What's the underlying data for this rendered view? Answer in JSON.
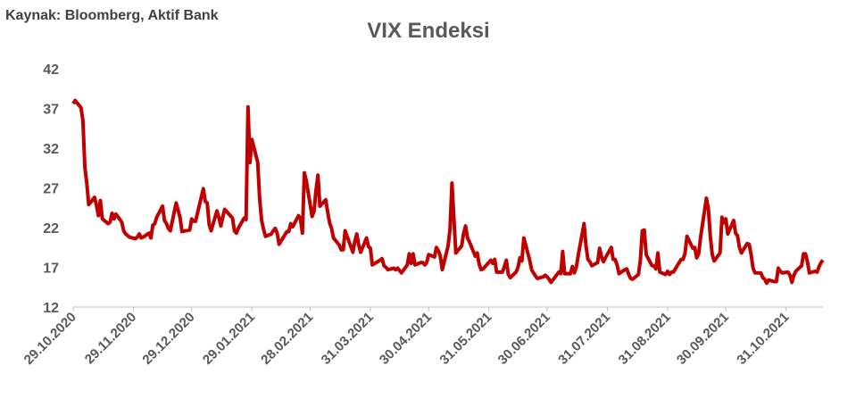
{
  "chart_data": {
    "type": "line",
    "title": "VIX Endeksi",
    "source": "Kaynak: Bloomberg, Aktif Bank",
    "x": [
      "29.10.2020",
      "30.10.2020",
      "02.11.2020",
      "03.11.2020",
      "04.11.2020",
      "05.11.2020",
      "06.11.2020",
      "09.11.2020",
      "10.11.2020",
      "11.11.2020",
      "12.11.2020",
      "13.11.2020",
      "16.11.2020",
      "17.11.2020",
      "18.11.2020",
      "19.11.2020",
      "20.11.2020",
      "23.11.2020",
      "24.11.2020",
      "25.11.2020",
      "27.11.2020",
      "30.11.2020",
      "01.12.2020",
      "02.12.2020",
      "03.12.2020",
      "04.12.2020",
      "07.12.2020",
      "08.12.2020",
      "09.12.2020",
      "10.12.2020",
      "11.12.2020",
      "14.12.2020",
      "15.12.2020",
      "16.12.2020",
      "17.12.2020",
      "18.12.2020",
      "21.12.2020",
      "22.12.2020",
      "23.12.2020",
      "24.12.2020",
      "28.12.2020",
      "29.12.2020",
      "30.12.2020",
      "31.12.2020",
      "04.01.2021",
      "05.01.2021",
      "06.01.2021",
      "07.01.2021",
      "08.01.2021",
      "11.01.2021",
      "12.01.2021",
      "13.01.2021",
      "14.01.2021",
      "15.01.2021",
      "19.01.2021",
      "20.01.2021",
      "21.01.2021",
      "22.01.2021",
      "25.01.2021",
      "26.01.2021",
      "27.01.2021",
      "28.01.2021",
      "29.01.2021",
      "01.02.2021",
      "02.02.2021",
      "03.02.2021",
      "04.02.2021",
      "05.02.2021",
      "08.02.2021",
      "09.02.2021",
      "10.02.2021",
      "11.02.2021",
      "12.02.2021",
      "16.02.2021",
      "17.02.2021",
      "18.02.2021",
      "19.02.2021",
      "22.02.2021",
      "23.02.2021",
      "24.02.2021",
      "25.02.2021",
      "26.02.2021",
      "01.03.2021",
      "02.03.2021",
      "03.03.2021",
      "04.03.2021",
      "05.03.2021",
      "08.03.2021",
      "09.03.2021",
      "10.03.2021",
      "11.03.2021",
      "12.03.2021",
      "15.03.2021",
      "16.03.2021",
      "17.03.2021",
      "18.03.2021",
      "19.03.2021",
      "22.03.2021",
      "23.03.2021",
      "24.03.2021",
      "25.03.2021",
      "26.03.2021",
      "29.03.2021",
      "30.03.2021",
      "31.03.2021",
      "01.04.2021",
      "05.04.2021",
      "06.04.2021",
      "07.04.2021",
      "08.04.2021",
      "09.04.2021",
      "12.04.2021",
      "13.04.2021",
      "14.04.2021",
      "15.04.2021",
      "16.04.2021",
      "19.04.2021",
      "20.04.2021",
      "21.04.2021",
      "22.04.2021",
      "23.04.2021",
      "26.04.2021",
      "27.04.2021",
      "28.04.2021",
      "29.04.2021",
      "30.04.2021",
      "03.05.2021",
      "04.05.2021",
      "05.05.2021",
      "06.05.2021",
      "07.05.2021",
      "10.05.2021",
      "11.05.2021",
      "12.05.2021",
      "13.05.2021",
      "14.05.2021",
      "17.05.2021",
      "18.05.2021",
      "19.05.2021",
      "20.05.2021",
      "21.05.2021",
      "24.05.2021",
      "25.05.2021",
      "26.05.2021",
      "27.05.2021",
      "28.05.2021",
      "01.06.2021",
      "02.06.2021",
      "03.06.2021",
      "04.06.2021",
      "07.06.2021",
      "08.06.2021",
      "09.06.2021",
      "10.06.2021",
      "11.06.2021",
      "14.06.2021",
      "15.06.2021",
      "16.06.2021",
      "17.06.2021",
      "18.06.2021",
      "21.06.2021",
      "22.06.2021",
      "23.06.2021",
      "24.06.2021",
      "25.06.2021",
      "28.06.2021",
      "29.06.2021",
      "30.06.2021",
      "01.07.2021",
      "02.07.2021",
      "06.07.2021",
      "07.07.2021",
      "08.07.2021",
      "09.07.2021",
      "12.07.2021",
      "13.07.2021",
      "14.07.2021",
      "15.07.2021",
      "16.07.2021",
      "19.07.2021",
      "20.07.2021",
      "21.07.2021",
      "22.07.2021",
      "23.07.2021",
      "26.07.2021",
      "27.07.2021",
      "28.07.2021",
      "29.07.2021",
      "30.07.2021",
      "02.08.2021",
      "03.08.2021",
      "04.08.2021",
      "05.08.2021",
      "06.08.2021",
      "09.08.2021",
      "10.08.2021",
      "11.08.2021",
      "12.08.2021",
      "13.08.2021",
      "16.08.2021",
      "17.08.2021",
      "18.08.2021",
      "19.08.2021",
      "20.08.2021",
      "23.08.2021",
      "24.08.2021",
      "25.08.2021",
      "26.08.2021",
      "27.08.2021",
      "30.08.2021",
      "31.08.2021",
      "01.09.2021",
      "02.09.2021",
      "03.09.2021",
      "07.09.2021",
      "08.09.2021",
      "09.09.2021",
      "10.09.2021",
      "13.09.2021",
      "14.09.2021",
      "15.09.2021",
      "16.09.2021",
      "17.09.2021",
      "20.09.2021",
      "21.09.2021",
      "22.09.2021",
      "23.09.2021",
      "24.09.2021",
      "27.09.2021",
      "28.09.2021",
      "29.09.2021",
      "30.09.2021",
      "01.10.2021",
      "04.10.2021",
      "05.10.2021",
      "06.10.2021",
      "07.10.2021",
      "08.10.2021",
      "11.10.2021",
      "12.10.2021",
      "13.10.2021",
      "14.10.2021",
      "15.10.2021",
      "18.10.2021",
      "19.10.2021",
      "20.10.2021",
      "21.10.2021",
      "22.10.2021",
      "25.10.2021",
      "26.10.2021",
      "27.10.2021",
      "28.10.2021",
      "29.10.2021",
      "01.11.2021",
      "02.11.2021",
      "03.11.2021",
      "04.11.2021",
      "05.11.2021",
      "08.11.2021",
      "09.11.2021",
      "10.11.2021",
      "11.11.2021",
      "12.11.2021",
      "15.11.2021",
      "16.11.2021",
      "17.11.2021",
      "18.11.2021",
      "19.11.2021"
    ],
    "series": [
      {
        "name": "VIX",
        "color": "#c00000",
        "values": [
          37.6,
          38.0,
          37.1,
          35.5,
          29.6,
          27.6,
          24.9,
          25.8,
          24.8,
          23.5,
          25.4,
          23.1,
          22.5,
          22.7,
          23.8,
          23.1,
          23.7,
          22.7,
          21.6,
          21.2,
          20.8,
          20.6,
          20.8,
          21.2,
          20.7,
          20.8,
          21.3,
          20.7,
          22.3,
          22.5,
          23.3,
          24.7,
          22.9,
          22.5,
          21.9,
          21.6,
          25.1,
          24.2,
          23.3,
          21.5,
          21.7,
          23.1,
          22.8,
          22.8,
          26.9,
          25.3,
          25.1,
          22.4,
          21.6,
          24.1,
          23.3,
          22.2,
          23.3,
          24.3,
          23.2,
          21.6,
          21.3,
          21.9,
          23.2,
          23.0,
          37.2,
          30.2,
          33.1,
          30.2,
          25.6,
          22.9,
          21.8,
          20.9,
          21.2,
          21.6,
          21.9,
          21.3,
          19.9,
          21.5,
          21.5,
          22.5,
          22.1,
          23.5,
          23.1,
          21.3,
          28.9,
          27.9,
          23.4,
          24.1,
          26.7,
          28.6,
          24.7,
          25.5,
          24.0,
          22.6,
          21.9,
          20.7,
          19.8,
          19.2,
          19.2,
          21.6,
          20.9,
          18.9,
          20.3,
          21.2,
          19.8,
          18.9,
          20.7,
          19.6,
          19.4,
          17.3,
          17.9,
          18.1,
          17.2,
          17.0,
          16.7,
          16.9,
          16.7,
          16.9,
          16.6,
          16.3,
          17.3,
          18.7,
          17.5,
          18.7,
          17.3,
          17.6,
          17.6,
          17.3,
          17.6,
          18.6,
          18.3,
          19.5,
          19.1,
          18.4,
          16.7,
          19.7,
          21.8,
          27.6,
          23.1,
          18.8,
          19.7,
          21.3,
          22.2,
          20.7,
          20.2,
          18.4,
          18.8,
          17.4,
          16.7,
          16.8,
          17.9,
          17.5,
          18.0,
          16.4,
          16.4,
          17.1,
          17.9,
          16.1,
          15.7,
          16.4,
          17.0,
          18.2,
          17.8,
          20.7,
          17.9,
          16.7,
          16.3,
          15.9,
          15.6,
          15.8,
          16.0,
          15.8,
          15.5,
          15.1,
          16.4,
          16.2,
          19.0,
          16.2,
          16.2,
          17.1,
          16.3,
          17.0,
          18.5,
          22.5,
          19.7,
          18.0,
          17.7,
          17.2,
          17.6,
          19.4,
          18.3,
          17.7,
          18.2,
          19.5,
          18.0,
          18.0,
          17.3,
          16.2,
          16.7,
          16.8,
          16.1,
          15.6,
          15.5,
          16.1,
          17.9,
          21.6,
          21.7,
          18.6,
          17.2,
          17.2,
          16.8,
          18.8,
          16.4,
          16.1,
          16.5,
          16.1,
          16.4,
          16.4,
          18.0,
          18.0,
          18.8,
          20.9,
          19.4,
          19.5,
          18.2,
          18.7,
          20.8,
          25.7,
          24.4,
          20.9,
          18.6,
          17.8,
          18.8,
          23.3,
          22.6,
          23.1,
          21.2,
          22.9,
          21.3,
          21.0,
          19.5,
          18.8,
          20.0,
          19.9,
          18.6,
          16.9,
          16.3,
          16.3,
          15.7,
          15.5,
          15.0,
          15.4,
          15.2,
          15.2,
          16.9,
          16.5,
          16.3,
          16.4,
          16.0,
          15.1,
          16.0,
          16.5,
          17.2,
          18.7,
          18.7,
          17.7,
          16.3,
          16.5,
          16.4,
          17.1,
          17.6,
          17.9
        ]
      }
    ],
    "xlim": [
      "29.10.2020",
      "19.11.2021"
    ],
    "xticks": [
      "29.10.2020",
      "29.11.2020",
      "29.12.2020",
      "29.01.2021",
      "28.02.2021",
      "31.03.2021",
      "30.04.2021",
      "31.05.2021",
      "30.06.2021",
      "31.07.2021",
      "31.08.2021",
      "30.09.2021",
      "31.10.2021"
    ],
    "ylim": [
      12,
      42
    ],
    "yticks": [
      12,
      17,
      22,
      27,
      32,
      37,
      42
    ],
    "grid": false
  }
}
